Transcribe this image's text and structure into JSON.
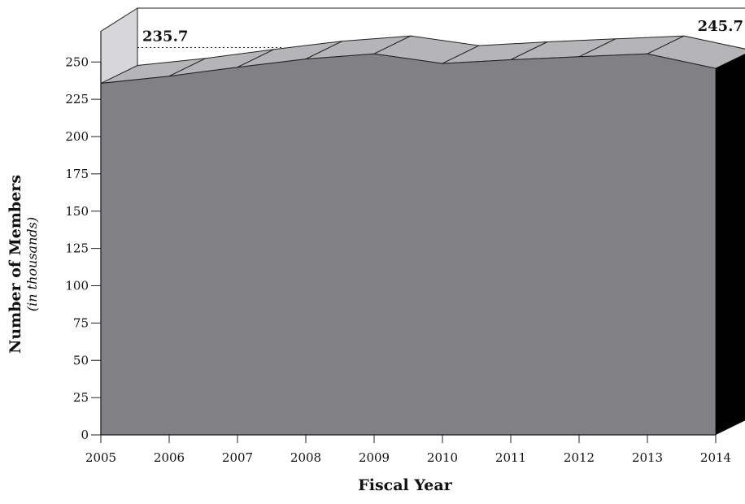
{
  "chart_data": {
    "type": "area",
    "x": [
      "2005",
      "2006",
      "2007",
      "2008",
      "2009",
      "2010",
      "2011",
      "2012",
      "2013",
      "2014"
    ],
    "series": [
      {
        "values": [
          235.7,
          240.5,
          246.5,
          252.0,
          255.5,
          249.0,
          251.5,
          253.5,
          255.5,
          245.7
        ]
      }
    ],
    "title": "",
    "xlabel": "Fiscal Year",
    "ylabel": "Number of Members",
    "ylabel_sub": "(in thousands)",
    "ylim": [
      0,
      250
    ],
    "yticks": [
      0,
      25,
      50,
      75,
      100,
      125,
      150,
      175,
      200,
      225,
      250
    ],
    "annotations": [
      {
        "x": "2005",
        "text": "235.7"
      },
      {
        "x": "2014",
        "text": "245.7"
      }
    ],
    "grid": false,
    "legend": "none",
    "style": "3d",
    "colors": {
      "front": "#808085",
      "top": "#b5b5b8",
      "side": "#000000",
      "back_wall": "#d7d7d9",
      "line": "#222222"
    }
  }
}
